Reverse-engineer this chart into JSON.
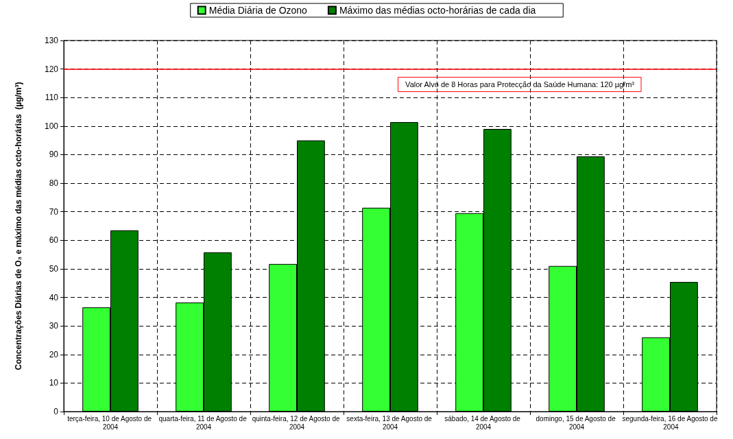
{
  "chart_data": {
    "type": "bar",
    "ylabel": "Concentrações Diárias de O₃ e máximo das médias octo-horárias  (µg/m³)",
    "categories": [
      "terça-feira, 10 de Agosto de 2004",
      "quarta-feira, 11 de Agosto de 2004",
      "quinta-feira, 12 de Agosto de 2004",
      "sexta-feira, 13 de Agosto de 2004",
      "sábado, 14 de Agosto de 2004",
      "domingo, 15 de Agosto de 2004",
      "segunda-feira, 16 de Agosto de 2004"
    ],
    "series": [
      {
        "name": "Média Diária de Ozono",
        "color": "#33ff33",
        "values": [
          36.5,
          38.2,
          51.7,
          71.4,
          69.5,
          51.0,
          26.0
        ]
      },
      {
        "name": "Máximo das médias octo-horárias de cada dia",
        "color": "#008000",
        "values": [
          63.5,
          55.8,
          95.0,
          101.4,
          99.0,
          89.4,
          45.4
        ]
      }
    ],
    "ylim": [
      0,
      130
    ],
    "yticks": [
      0,
      10,
      20,
      30,
      40,
      50,
      60,
      70,
      80,
      90,
      100,
      110,
      120,
      130
    ],
    "ref_lines": [
      {
        "axis": "y",
        "value": 120,
        "label": "Valor Alvo de 8 Horas para Protecção da Saúde Humana: 120 µg/m³",
        "color": "#ff0000"
      }
    ],
    "grid": true,
    "legend": "top"
  }
}
